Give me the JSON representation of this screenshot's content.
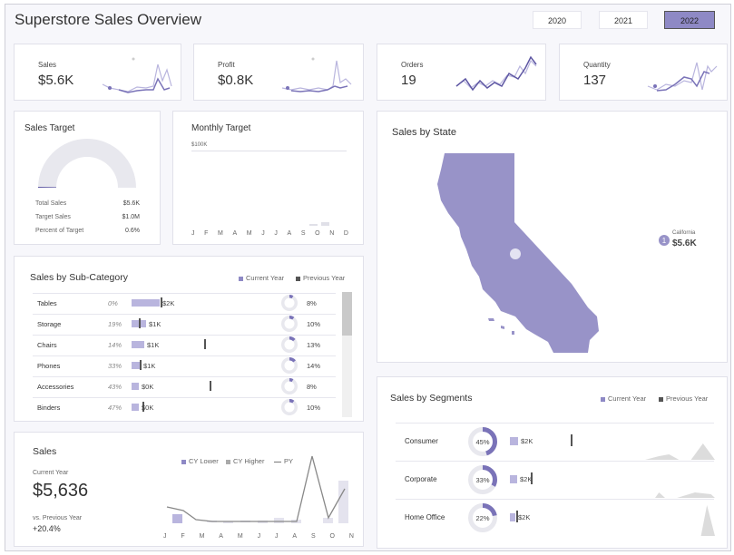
{
  "header": {
    "title": "Superstore Sales Overview",
    "years": [
      "2020",
      "2021",
      "2022"
    ],
    "selected_year": "2022"
  },
  "kpis": [
    {
      "label": "Sales",
      "value": "$5.6K"
    },
    {
      "label": "Profit",
      "value": "$0.8K"
    },
    {
      "label": "Orders",
      "value": "19"
    },
    {
      "label": "Quantity",
      "value": "137"
    }
  ],
  "sales_target": {
    "title": "Sales Target",
    "percent": 0.006,
    "rows": [
      {
        "label": "Total Sales",
        "value": "$5.6K"
      },
      {
        "label": "Target Sales",
        "value": "$1.0M"
      },
      {
        "label": "Percent of Target",
        "value": "0.6%"
      }
    ]
  },
  "monthly_target": {
    "title": "Monthly Target",
    "axis_label": "$100K",
    "months": [
      "J",
      "F",
      "M",
      "A",
      "M",
      "J",
      "J",
      "A",
      "S",
      "O",
      "N",
      "D"
    ]
  },
  "state_map": {
    "title": "Sales by State",
    "marker_number": "1",
    "state": "California",
    "value": "$5.6K"
  },
  "subcategory": {
    "title": "Sales by Sub-Category",
    "legend_current": "Current Year",
    "legend_previous": "Previous Year",
    "rows": [
      {
        "name": "Tables",
        "pct": "0%",
        "value": "$2K",
        "donut": "8%",
        "donut_frac": 0.08
      },
      {
        "name": "Storage",
        "pct": "19%",
        "value": "$1K",
        "donut": "10%",
        "donut_frac": 0.1
      },
      {
        "name": "Chairs",
        "pct": "14%",
        "value": "$1K",
        "donut": "13%",
        "donut_frac": 0.13
      },
      {
        "name": "Phones",
        "pct": "33%",
        "value": "$1K",
        "donut": "14%",
        "donut_frac": 0.14
      },
      {
        "name": "Accessories",
        "pct": "43%",
        "value": "$0K",
        "donut": "8%",
        "donut_frac": 0.08
      },
      {
        "name": "Binders",
        "pct": "47%",
        "value": "$0K",
        "donut": "10%",
        "donut_frac": 0.1
      }
    ]
  },
  "segments": {
    "title": "Sales by Segments",
    "legend_current": "Current Year",
    "legend_previous": "Previous Year",
    "rows": [
      {
        "name": "Consumer",
        "donut": "45%",
        "donut_frac": 0.45,
        "value": "$2K"
      },
      {
        "name": "Corporate",
        "donut": "33%",
        "donut_frac": 0.33,
        "value": "$2K"
      },
      {
        "name": "Home Office",
        "donut": "22%",
        "donut_frac": 0.22,
        "value": "$2K"
      }
    ]
  },
  "sales_panel": {
    "title": "Sales",
    "current_year_label": "Current Year",
    "current_value": "$5,636",
    "vs_label": "vs. Previous Year",
    "vs_value": "+20.4%",
    "legend_lower": "CY Lower",
    "legend_higher": "CY Higher",
    "legend_py": "PY",
    "months": [
      "J",
      "F",
      "M",
      "A",
      "M",
      "J",
      "J",
      "A",
      "S",
      "O",
      "N"
    ]
  },
  "colors": {
    "accent": "#8e89c5",
    "accent_light": "#b9b5de",
    "map_fill": "#9893c8",
    "gray": "#e8e8ee"
  }
}
